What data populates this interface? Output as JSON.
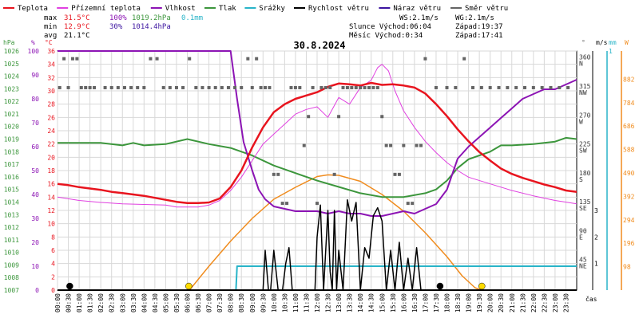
{
  "legend": [
    {
      "label": "Teplota",
      "color": "#e8141e"
    },
    {
      "label": "Přízemní teplota",
      "color": "#e040e0"
    },
    {
      "label": "Vlhkost",
      "color": "#8c14b4"
    },
    {
      "label": "Tlak",
      "color": "#3c963c"
    },
    {
      "label": "Srážky",
      "color": "#28b4c8"
    },
    {
      "label": "Rychlost větru",
      "color": "#000000"
    },
    {
      "label": "Náraz větru",
      "color": "#3c14a0"
    },
    {
      "label": "Směr větru",
      "color": "#646464"
    }
  ],
  "stats": {
    "max": {
      "label": "max",
      "temp": "31.5°C",
      "hum": "100%",
      "press": "1019.2hPa",
      "rain": "0.1mm"
    },
    "min": {
      "label": "min",
      "temp": "12.9°C",
      "hum": "30%",
      "press": "1014.4hPa"
    },
    "avg": {
      "label": "avg",
      "temp": "21.1°C"
    }
  },
  "info": {
    "ws": "WS:2.1m/s",
    "wg": "WG:2.1m/s",
    "sun": "Slunce Východ:06:04",
    "sun_set": "Západ:19:37",
    "moon": "Měsíc Východ:0:34",
    "moon_set": "Západ:17:41"
  },
  "title": "30.8.2024",
  "axis_units": {
    "hpa": "hPa",
    "pct": "%",
    "degc": "°C",
    "deg": "°",
    "ms": "m/s",
    "mm": "mm",
    "wm2": "W",
    "time": "čas"
  },
  "colors": {
    "temp": "#e8141e",
    "ground": "#e040e0",
    "hum": "#8c14b4",
    "press": "#3c963c",
    "rain": "#28b4c8",
    "wind": "#000000",
    "gust": "#3c14a0",
    "dir": "#646464",
    "solar": "#f08c1e",
    "grid": "#d8d8d8",
    "sun_marker": "#ffdc00"
  },
  "chart_data": {
    "type": "line",
    "x_unit": "hour of day",
    "x_range": [
      0,
      24
    ],
    "x_ticks": [
      "00:00",
      "00:30",
      "01:00",
      "01:30",
      "02:00",
      "02:30",
      "03:00",
      "03:30",
      "04:00",
      "04:30",
      "05:00",
      "05:30",
      "06:00",
      "06:30",
      "07:00",
      "07:30",
      "08:00",
      "08:30",
      "09:00",
      "09:30",
      "10:00",
      "10:30",
      "11:00",
      "11:30",
      "12:00",
      "12:30",
      "13:00",
      "13:30",
      "14:00",
      "14:30",
      "15:00",
      "15:30",
      "16:00",
      "16:30",
      "17:00",
      "17:30",
      "18:00",
      "18:30",
      "19:00",
      "19:30",
      "20:00",
      "20:30",
      "21:00",
      "21:30",
      "22:00",
      "22:30",
      "23:00",
      "23:30"
    ],
    "axes": {
      "hpa": {
        "ylim": [
          1007,
          1026
        ],
        "ticks": [
          1007,
          1008,
          1009,
          1010,
          1011,
          1012,
          1013,
          1014,
          1015,
          1016,
          1017,
          1018,
          1019,
          1020,
          1021,
          1022,
          1023,
          1024,
          1025,
          1026
        ]
      },
      "pct": {
        "ylim": [
          0,
          100
        ],
        "ticks": [
          0,
          10,
          20,
          30,
          40,
          50,
          60,
          70,
          80,
          90,
          100
        ]
      },
      "degc": {
        "ylim": [
          0,
          36
        ],
        "ticks": [
          0,
          2,
          4,
          6,
          8,
          10,
          12,
          14,
          16,
          18,
          20,
          22,
          24,
          26,
          28,
          30,
          32,
          34,
          36
        ]
      },
      "deg": {
        "ticks": [
          {
            "v": 45,
            "l": "45",
            "d": "NE"
          },
          {
            "v": 90,
            "l": "90",
            "d": "E"
          },
          {
            "v": 135,
            "l": "135",
            "d": "SE"
          },
          {
            "v": 180,
            "l": "180",
            "d": "S"
          },
          {
            "v": 225,
            "l": "225",
            "d": "SW"
          },
          {
            "v": 270,
            "l": "270",
            "d": "W"
          },
          {
            "v": 315,
            "l": "315",
            "d": "NW"
          },
          {
            "v": 360,
            "l": "360",
            "d": "N"
          }
        ]
      },
      "ms": {
        "ylim": [
          0,
          9
        ],
        "ticks": [
          1,
          2,
          3
        ]
      },
      "mm": {
        "ylim": [
          0,
          1
        ],
        "ticks": [
          1
        ]
      },
      "wm2": {
        "ylim": [
          0,
          1000
        ],
        "ticks": [
          98,
          196,
          294,
          392,
          490,
          588,
          686,
          784,
          882
        ]
      }
    },
    "series": [
      {
        "name": "Teplota",
        "unit": "°C",
        "x": [
          0,
          0.5,
          1,
          1.5,
          2,
          2.5,
          3,
          3.5,
          4,
          4.5,
          5,
          5.5,
          6,
          6.5,
          7,
          7.5,
          8,
          8.5,
          9,
          9.5,
          10,
          10.5,
          11,
          11.5,
          12,
          12.5,
          13,
          13.5,
          14,
          14.5,
          15,
          15.5,
          16,
          16.5,
          17,
          17.5,
          18,
          18.5,
          19,
          19.5,
          20,
          20.5,
          21,
          21.5,
          22,
          22.5,
          23,
          23.5,
          24
        ],
        "y": [
          16,
          15.8,
          15.5,
          15.3,
          15.1,
          14.8,
          14.6,
          14.4,
          14.2,
          13.9,
          13.6,
          13.3,
          13.1,
          13.1,
          13.2,
          13.8,
          15.5,
          18,
          21.5,
          24.5,
          26.8,
          28,
          28.8,
          29.3,
          29.8,
          30.6,
          31.1,
          31,
          30.8,
          31.2,
          30.9,
          31,
          30.8,
          30.5,
          29.6,
          28,
          26.2,
          24.2,
          22.4,
          20.8,
          19.5,
          18.3,
          17.5,
          16.9,
          16.4,
          15.9,
          15.5,
          15,
          14.8
        ]
      },
      {
        "name": "Přízemní teplota",
        "unit": "°C",
        "x": [
          0,
          1,
          2,
          3,
          4,
          5,
          5.5,
          6,
          6.5,
          7,
          7.5,
          8,
          8.5,
          9,
          9.5,
          10,
          10.5,
          11,
          11.5,
          12,
          12.5,
          13,
          13.5,
          14,
          14.5,
          14.8,
          15,
          15.3,
          15.6,
          16,
          16.5,
          17,
          17.5,
          18,
          18.5,
          19,
          20,
          21,
          22,
          23,
          24
        ],
        "y": [
          14,
          13.5,
          13.2,
          13,
          12.9,
          12.8,
          12.5,
          12.5,
          12.5,
          12.8,
          13.5,
          15,
          17,
          19.5,
          22,
          23.5,
          25,
          26.5,
          27.2,
          27.6,
          26,
          29,
          28,
          30.5,
          31.6,
          33.5,
          34,
          33,
          30,
          27,
          24.5,
          22.4,
          20.7,
          19.2,
          18,
          17,
          16,
          15,
          14.2,
          13.5,
          13
        ]
      },
      {
        "name": "Vlhkost",
        "unit": "%",
        "x": [
          0,
          7,
          8,
          8.3,
          8.6,
          9,
          9.3,
          9.6,
          10,
          10.5,
          11,
          11.5,
          12,
          12.5,
          13,
          13.5,
          14,
          14.5,
          15,
          15.5,
          16,
          16.5,
          17,
          17.5,
          18,
          18.5,
          19,
          19.5,
          20,
          20.5,
          21,
          21.5,
          22,
          22.5,
          23,
          23.5,
          24
        ],
        "y": [
          100,
          100,
          100,
          80,
          62,
          50,
          42,
          38,
          35,
          34,
          33,
          33,
          33,
          32,
          33,
          32,
          32,
          31,
          31,
          32,
          33,
          32,
          34,
          36,
          42,
          55,
          60,
          64,
          68,
          72,
          76,
          80,
          82,
          84,
          84,
          86,
          88
        ]
      },
      {
        "name": "Tlak",
        "unit": "hPa",
        "x": [
          0,
          1,
          2,
          3,
          3.5,
          4,
          5,
          6,
          7,
          8,
          9,
          10,
          11,
          12,
          13,
          14,
          15,
          16,
          17,
          17.5,
          18,
          18.5,
          19,
          20,
          20.5,
          21,
          22,
          23,
          23.5,
          24
        ],
        "y": [
          1018.7,
          1018.7,
          1018.7,
          1018.5,
          1018.7,
          1018.5,
          1018.6,
          1019.0,
          1018.6,
          1018.3,
          1017.7,
          1016.9,
          1016.3,
          1015.7,
          1015.2,
          1014.7,
          1014.4,
          1014.4,
          1014.7,
          1015.0,
          1015.7,
          1016.7,
          1017.4,
          1018.0,
          1018.5,
          1018.5,
          1018.6,
          1018.8,
          1019.1,
          1019.0
        ]
      },
      {
        "name": "Srážky",
        "unit": "mm",
        "x": [
          0,
          8.25,
          8.3,
          24
        ],
        "y": [
          0,
          0,
          0.1,
          0.1
        ]
      },
      {
        "name": "Rychlost větru",
        "unit": "m/s",
        "x": [
          0,
          9.5,
          9.6,
          9.75,
          9.85,
          10,
          10.2,
          10.4,
          10.55,
          10.7,
          10.85,
          11,
          11.5,
          11.9,
          12,
          12.15,
          12.3,
          12.5,
          12.6,
          12.7,
          12.8,
          12.9,
          13,
          13.2,
          13.4,
          13.6,
          13.8,
          14,
          14.2,
          14.4,
          14.6,
          14.8,
          15,
          15.2,
          15.4,
          15.6,
          15.8,
          16,
          16.2,
          16.4,
          16.6,
          16.8,
          17,
          24
        ],
        "y": [
          0,
          0,
          1.5,
          0,
          0,
          1.5,
          0,
          0,
          1,
          1.6,
          0,
          0,
          0,
          0,
          2,
          3.2,
          0,
          3,
          0.7,
          0,
          3,
          0,
          1.5,
          0,
          3.4,
          2.6,
          3.3,
          0,
          1.6,
          1.2,
          2.8,
          3.1,
          2.6,
          0,
          1.5,
          0,
          1.8,
          0,
          1.2,
          0,
          1.6,
          0,
          0,
          0
        ]
      },
      {
        "name": "Náraz větru",
        "unit": "m/s",
        "x": [
          0,
          24
        ],
        "y": [
          0,
          0
        ]
      },
      {
        "name": "Směr větru",
        "unit": "°",
        "x": [
          0.1,
          0.3,
          0.5,
          0.7,
          0.9,
          1.1,
          1.3,
          1.5,
          1.7,
          2.2,
          2.5,
          2.8,
          3.1,
          3.4,
          3.7,
          4,
          4.3,
          4.6,
          4.9,
          5.2,
          5.5,
          5.8,
          6.1,
          6.4,
          6.7,
          7,
          7.3,
          7.6,
          7.9,
          8.2,
          8.5,
          8.8,
          9,
          9.2,
          9.4,
          9.6,
          9.8,
          10,
          10.2,
          10.4,
          10.6,
          10.8,
          11,
          11.2,
          11.4,
          11.6,
          11.8,
          12,
          12.2,
          12.4,
          12.6,
          12.8,
          13,
          13.2,
          13.4,
          13.6,
          13.8,
          14,
          14.2,
          14.4,
          14.6,
          14.8,
          15,
          15.2,
          15.4,
          15.6,
          15.8,
          16,
          16.2,
          16.4,
          16.6,
          16.8,
          17,
          17.5,
          18,
          18.4,
          18.8,
          19.2,
          19.6,
          20,
          20.4,
          20.8,
          21.2,
          21.6,
          22,
          22.4,
          22.8,
          23.2,
          23.6
        ],
        "y": [
          315,
          360,
          315,
          360,
          360,
          315,
          315,
          315,
          315,
          315,
          315,
          315,
          315,
          315,
          315,
          315,
          360,
          360,
          315,
          315,
          315,
          315,
          360,
          315,
          315,
          315,
          315,
          315,
          315,
          315,
          315,
          360,
          315,
          360,
          315,
          315,
          315,
          180,
          180,
          135,
          135,
          315,
          315,
          315,
          225,
          270,
          315,
          135,
          315,
          315,
          315,
          180,
          270,
          315,
          315,
          315,
          315,
          315,
          315,
          315,
          315,
          315,
          270,
          225,
          225,
          180,
          180,
          225,
          135,
          135,
          225,
          225,
          360,
          315,
          315,
          315,
          360,
          315,
          315,
          315,
          315,
          315,
          315,
          315,
          315,
          315,
          315,
          315,
          315
        ]
      },
      {
        "name": "Solar",
        "unit": "W",
        "x": [
          6.1,
          7,
          8,
          9,
          10,
          11,
          12,
          12.5,
          13,
          14,
          15,
          16,
          17,
          18,
          18.7,
          19.3,
          19.6
        ],
        "y": [
          0,
          100,
          205,
          300,
          380,
          430,
          475,
          482,
          480,
          455,
          400,
          330,
          240,
          140,
          60,
          10,
          0
        ]
      }
    ]
  }
}
